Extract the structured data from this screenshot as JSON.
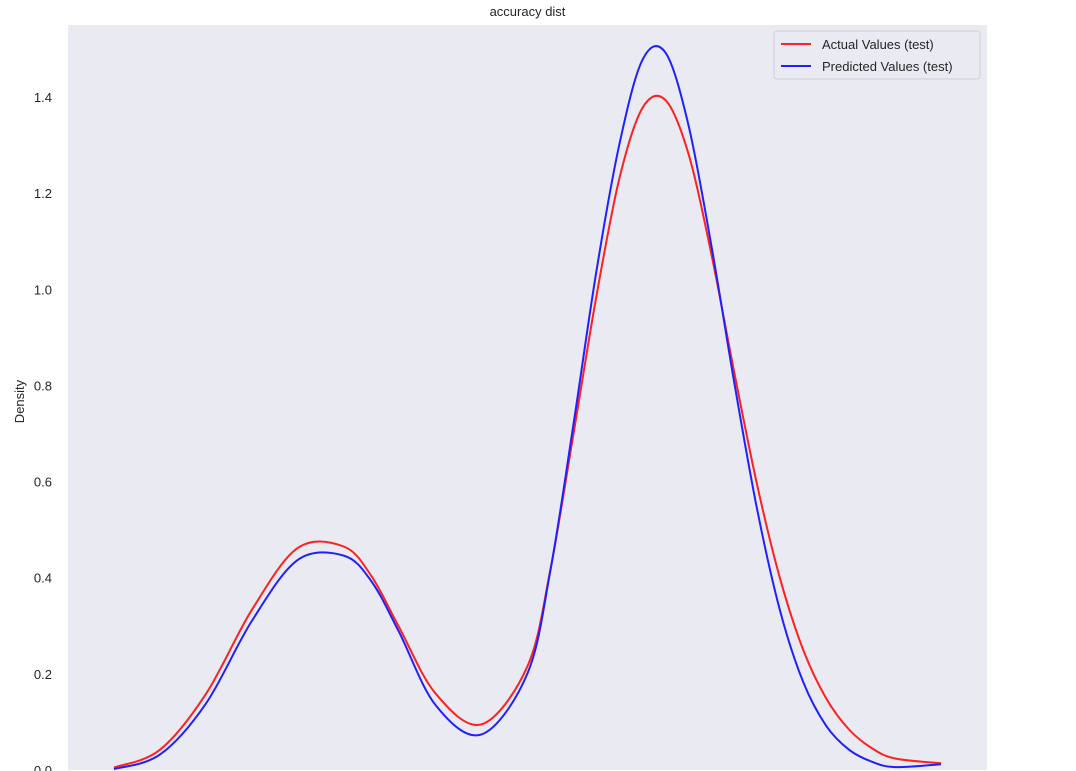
{
  "chart_data": {
    "type": "line",
    "title": "accuracy dist",
    "xlabel": "",
    "ylabel": "Density",
    "ylim": [
      0.0,
      1.55
    ],
    "xlim": [
      0,
      1
    ],
    "grid": false,
    "background": "#eaeaf2",
    "legend_position": "top-right",
    "yticks": [
      0.0,
      0.2,
      0.4,
      0.6,
      0.8,
      1.0,
      1.2,
      1.4
    ],
    "ytick_labels": [
      "0.0",
      "0.2",
      "0.4",
      "0.6",
      "0.8",
      "1.0",
      "1.2",
      "1.4"
    ],
    "series": [
      {
        "name": "Actual Values (test)",
        "color": "#ff2020",
        "x": [
          0.05,
          0.1,
          0.15,
          0.2,
          0.25,
          0.3,
          0.33,
          0.36,
          0.4,
          0.45,
          0.5,
          0.525,
          0.55,
          0.575,
          0.6,
          0.625,
          0.65,
          0.675,
          0.7,
          0.725,
          0.75,
          0.775,
          0.8,
          0.825,
          0.85,
          0.875,
          0.9,
          0.95
        ],
        "y": [
          0.005,
          0.042,
          0.158,
          0.333,
          0.462,
          0.465,
          0.404,
          0.298,
          0.159,
          0.095,
          0.216,
          0.418,
          0.699,
          0.986,
          1.231,
          1.377,
          1.394,
          1.283,
          1.074,
          0.827,
          0.592,
          0.397,
          0.25,
          0.149,
          0.084,
          0.045,
          0.024,
          0.014
        ]
      },
      {
        "name": "Predicted Values (test)",
        "color": "#2020ff",
        "x": [
          0.05,
          0.1,
          0.15,
          0.2,
          0.25,
          0.3,
          0.33,
          0.36,
          0.4,
          0.45,
          0.5,
          0.525,
          0.55,
          0.575,
          0.6,
          0.625,
          0.65,
          0.675,
          0.7,
          0.725,
          0.75,
          0.775,
          0.8,
          0.825,
          0.85,
          0.875,
          0.9,
          0.95
        ],
        "y": [
          0.002,
          0.032,
          0.138,
          0.31,
          0.437,
          0.446,
          0.393,
          0.288,
          0.135,
          0.074,
          0.201,
          0.416,
          0.719,
          1.038,
          1.302,
          1.477,
          1.493,
          1.343,
          1.092,
          0.806,
          0.541,
          0.33,
          0.183,
          0.092,
          0.042,
          0.017,
          0.006,
          0.012
        ]
      }
    ]
  }
}
